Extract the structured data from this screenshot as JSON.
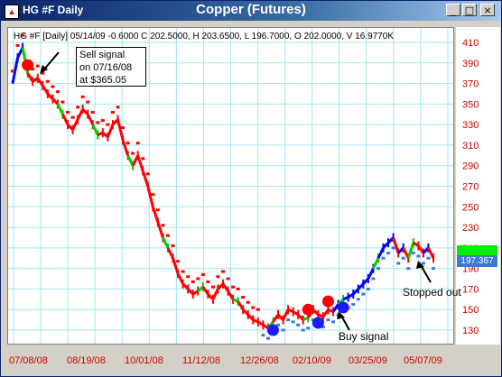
{
  "window": {
    "title": "HG #F Daily",
    "chart_title": "Copper (Futures)",
    "app_icon": "chart-icon",
    "buttons": {
      "minimize": "_",
      "maximize": "□",
      "close": "×"
    }
  },
  "header": {
    "text": "HG #F [Daily] 05/14/09 -0.6000 C 202.5000, H 203.6500, L 196.7000, O 202.0000, V 16.9770K"
  },
  "annotations": {
    "sell_signal": [
      "Sell signal",
      "on 07/16/08",
      "at $365.05"
    ],
    "buy_signal": "Buy signal",
    "stopped_out": "Stopped out"
  },
  "last_price": "197.367",
  "colors": {
    "up": "#0000ff",
    "down": "#ff0000",
    "neutral": "#00cc00",
    "stop": "#3c78d8",
    "sell": "#ff0000"
  },
  "chart_data": {
    "type": "line",
    "title": "Copper (Futures)",
    "xlabel": "",
    "ylabel": "",
    "ylim": [
      130,
      410
    ],
    "y_ticks": [
      410,
      390,
      370,
      350,
      330,
      310,
      290,
      270,
      250,
      230,
      210,
      190,
      170,
      150,
      130
    ],
    "x_ticks": [
      "07/08/08",
      "08/19/08",
      "10/01/08",
      "11/12/08",
      "12/26/08",
      "02/10/09",
      "03/25/09",
      "05/07/09"
    ],
    "grid": true,
    "series": [
      {
        "values": [
          370,
          395,
          405,
          380,
          372,
          375,
          368,
          360,
          355,
          350,
          340,
          330,
          325,
          335,
          345,
          340,
          330,
          320,
          322,
          318,
          330,
          335,
          315,
          300,
          290,
          300,
          285,
          270,
          250,
          235,
          220,
          210,
          200,
          185,
          175,
          170,
          165,
          168,
          172,
          165,
          160,
          170,
          175,
          168,
          160,
          158,
          150,
          145,
          140,
          138,
          135,
          132,
          138,
          145,
          140,
          150,
          148,
          145,
          140,
          142,
          150,
          145,
          143,
          150,
          148,
          155,
          160,
          162,
          165,
          170,
          175,
          180,
          190,
          200,
          210,
          215,
          220,
          205,
          210,
          200,
          215,
          212,
          205,
          210,
          200
        ]
      }
    ],
    "markers": [
      {
        "type": "sell",
        "x_index": 3,
        "price": 365.05
      },
      {
        "type": "buy",
        "x_index": 52
      },
      {
        "type": "sell",
        "x_index": 59
      },
      {
        "type": "buy",
        "x_index": 61
      },
      {
        "type": "sell",
        "x_index": 63
      },
      {
        "type": "buy",
        "x_index": 66
      }
    ]
  }
}
